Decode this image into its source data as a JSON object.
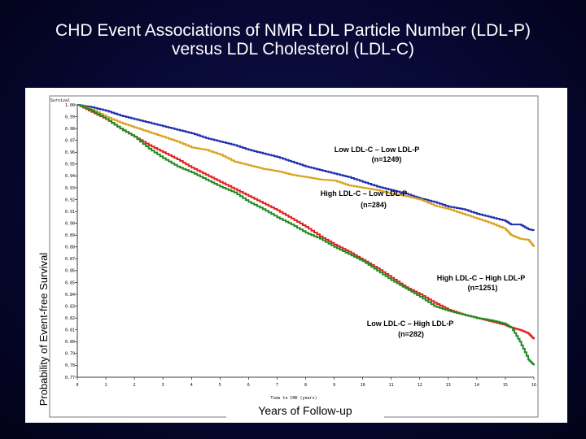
{
  "slide": {
    "title_line1": "CHD Event Associations of NMR LDL Particle Number (LDL-P)",
    "title_line2": "versus LDL Cholesterol (LDL-C)"
  },
  "chart_data": {
    "type": "line",
    "title": "CHD Event Associations of NMR LDL Particle Number (LDL-P) versus LDL Cholesterol (LDL-C)",
    "xlabel": "Years of Follow-up",
    "xlabel_small": "Time to CHD (years)",
    "ylabel": "Probability of Event-free Survival",
    "ytitle_small": "Survival",
    "xlim": [
      0,
      16
    ],
    "ylim": [
      0.77,
      1.0
    ],
    "x_ticks": [
      "0",
      "1",
      "2",
      "3",
      "4",
      "5",
      "6",
      "7",
      "8",
      "9",
      "10",
      "11",
      "12",
      "13",
      "14",
      "15",
      "16"
    ],
    "y_ticks": [
      "1.00",
      "0.99",
      "0.98",
      "0.97",
      "0.96",
      "0.95",
      "0.94",
      "0.93",
      "0.92",
      "0.91",
      "0.90",
      "0.89",
      "0.88",
      "0.87",
      "0.86",
      "0.85",
      "0.84",
      "0.83",
      "0.82",
      "0.81",
      "0.80",
      "0.79",
      "0.78",
      "0.77"
    ],
    "grid": false,
    "series": [
      {
        "name_line1": "Low LDL-C – Low LDL-P",
        "name_line2": "(n=1249)",
        "color": "#1f2db0",
        "x": [
          0,
          0.5,
          1,
          1.5,
          2,
          2.5,
          3,
          3.5,
          4,
          4.5,
          5,
          5.5,
          6,
          6.5,
          7,
          7.5,
          8,
          8.5,
          9,
          9.5,
          10,
          10.5,
          11,
          11.5,
          12,
          12.5,
          13,
          13.5,
          14,
          14.5,
          15,
          15.2,
          15.5,
          15.8,
          16
        ],
        "y": [
          1.0,
          0.998,
          0.995,
          0.991,
          0.988,
          0.985,
          0.982,
          0.979,
          0.976,
          0.972,
          0.969,
          0.966,
          0.962,
          0.959,
          0.956,
          0.952,
          0.948,
          0.945,
          0.942,
          0.939,
          0.935,
          0.931,
          0.928,
          0.925,
          0.921,
          0.918,
          0.914,
          0.912,
          0.908,
          0.905,
          0.902,
          0.899,
          0.899,
          0.895,
          0.894
        ]
      },
      {
        "name_line1": "High LDL-C – Low LDL-P",
        "name_line2": "(n=284)",
        "color": "#d9a21b",
        "x": [
          0,
          0.5,
          1,
          1.5,
          2,
          2.5,
          3,
          3.5,
          4,
          4.5,
          5,
          5.5,
          6,
          6.5,
          7,
          7.5,
          8,
          8.5,
          9,
          9.5,
          10,
          10.5,
          11,
          11.5,
          12,
          12.5,
          13,
          13.5,
          14,
          14.5,
          15,
          15.2,
          15.5,
          15.8,
          16
        ],
        "y": [
          1.0,
          0.996,
          0.99,
          0.985,
          0.981,
          0.977,
          0.973,
          0.969,
          0.964,
          0.962,
          0.958,
          0.952,
          0.949,
          0.946,
          0.944,
          0.941,
          0.939,
          0.937,
          0.936,
          0.932,
          0.93,
          0.928,
          0.925,
          0.923,
          0.92,
          0.915,
          0.912,
          0.908,
          0.904,
          0.9,
          0.895,
          0.89,
          0.887,
          0.886,
          0.88
        ]
      },
      {
        "name_line1": "High LDL-C – High LDL-P",
        "name_line2": "(n=1251)",
        "color": "#e0201e",
        "x": [
          0,
          0.5,
          1,
          1.5,
          2,
          2.5,
          3,
          3.5,
          4,
          4.5,
          5,
          5.5,
          6,
          6.5,
          7,
          7.5,
          8,
          8.5,
          9,
          9.5,
          10,
          10.5,
          11,
          11.5,
          12,
          12.5,
          13,
          13.5,
          14,
          14.5,
          15,
          15.2,
          15.5,
          15.8,
          16
        ],
        "y": [
          1.0,
          0.994,
          0.988,
          0.98,
          0.973,
          0.966,
          0.96,
          0.954,
          0.947,
          0.941,
          0.935,
          0.929,
          0.923,
          0.917,
          0.911,
          0.904,
          0.897,
          0.889,
          0.882,
          0.876,
          0.869,
          0.862,
          0.854,
          0.846,
          0.84,
          0.833,
          0.827,
          0.823,
          0.82,
          0.817,
          0.814,
          0.812,
          0.81,
          0.807,
          0.802
        ]
      },
      {
        "name_line1": "Low LDL-C – High LDL-P",
        "name_line2": "(n=282)",
        "color": "#228a22",
        "x": [
          0,
          0.5,
          1,
          1.5,
          2,
          2.5,
          3,
          3.5,
          4,
          4.5,
          5,
          5.5,
          6,
          6.5,
          7,
          7.5,
          8,
          8.5,
          9,
          9.5,
          10,
          10.5,
          11,
          11.5,
          12,
          12.5,
          13,
          13.5,
          14,
          14.5,
          15,
          15.2,
          15.5,
          15.8,
          16
        ],
        "y": [
          1.0,
          0.995,
          0.988,
          0.98,
          0.973,
          0.963,
          0.955,
          0.948,
          0.943,
          0.937,
          0.931,
          0.926,
          0.918,
          0.912,
          0.905,
          0.899,
          0.892,
          0.887,
          0.88,
          0.874,
          0.868,
          0.86,
          0.852,
          0.845,
          0.838,
          0.83,
          0.826,
          0.823,
          0.82,
          0.818,
          0.815,
          0.812,
          0.8,
          0.785,
          0.78
        ]
      }
    ]
  }
}
